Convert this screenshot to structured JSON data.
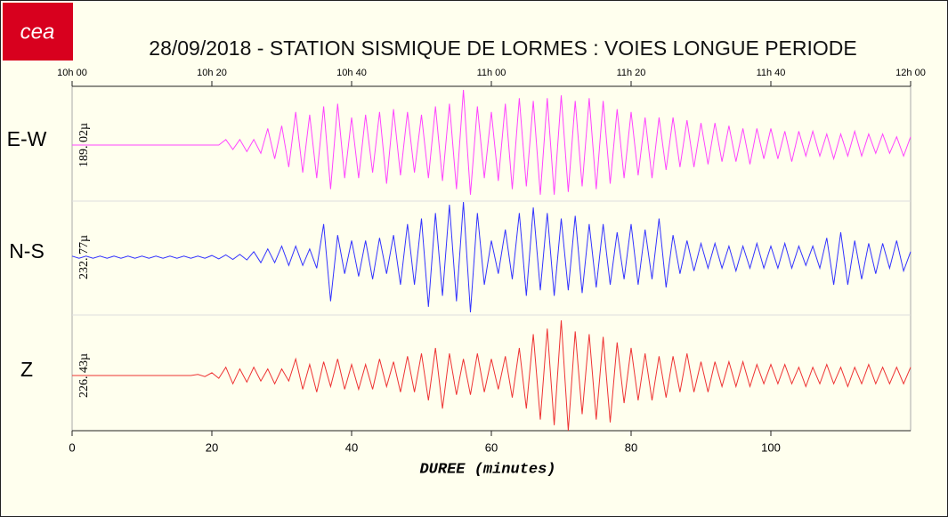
{
  "chart_data": {
    "type": "line",
    "logo": "cea",
    "title": "28/09/2018  -  STATION SISMIQUE DE LORMES : VOIES LONGUE PERIODE",
    "xlabel": "DUREE (minutes)",
    "xlim": [
      0,
      120
    ],
    "xticks": [
      0,
      20,
      40,
      60,
      80,
      100
    ],
    "x2ticks": [
      {
        "value": 0,
        "label": "10h 00"
      },
      {
        "value": 20,
        "label": "10h 20"
      },
      {
        "value": 40,
        "label": "10h 40"
      },
      {
        "value": 60,
        "label": "11h 00"
      },
      {
        "value": 80,
        "label": "11h 20"
      },
      {
        "value": 100,
        "label": "11h 40"
      },
      {
        "value": 120,
        "label": "12h 00"
      }
    ],
    "ylim": [
      -1,
      1
    ],
    "x": [
      0,
      1,
      2,
      3,
      4,
      5,
      6,
      7,
      8,
      9,
      10,
      11,
      12,
      13,
      14,
      15,
      16,
      17,
      18,
      19,
      20,
      21,
      22,
      23,
      24,
      25,
      26,
      27,
      28,
      29,
      30,
      31,
      32,
      33,
      34,
      35,
      36,
      37,
      38,
      39,
      40,
      41,
      42,
      43,
      44,
      45,
      46,
      47,
      48,
      49,
      50,
      51,
      52,
      53,
      54,
      55,
      56,
      57,
      58,
      59,
      60,
      61,
      62,
      63,
      64,
      65,
      66,
      67,
      68,
      69,
      70,
      71,
      72,
      73,
      74,
      75,
      76,
      77,
      78,
      79,
      80,
      81,
      82,
      83,
      84,
      85,
      86,
      87,
      88,
      89,
      90,
      91,
      92,
      93,
      94,
      95,
      96,
      97,
      98,
      99,
      100,
      101,
      102,
      103,
      104,
      105,
      106,
      107,
      108,
      109,
      110,
      111,
      112,
      113,
      114,
      115,
      116,
      117,
      118,
      119,
      120
    ],
    "series": [
      {
        "name": "E-W",
        "scale_label": "189. 02µ",
        "color": "#ff44ff",
        "values": [
          0,
          0,
          0,
          0,
          0,
          0,
          0,
          0,
          0,
          0,
          0,
          0,
          0,
          0,
          0,
          0,
          0,
          0,
          0,
          0,
          0,
          0,
          0.1,
          -0.08,
          0.1,
          -0.12,
          0.1,
          -0.15,
          0.3,
          -0.25,
          0.35,
          -0.4,
          0.6,
          -0.5,
          0.55,
          -0.6,
          0.7,
          -0.8,
          0.75,
          -0.6,
          0.5,
          -0.6,
          0.55,
          -0.5,
          0.6,
          -0.7,
          0.65,
          -0.55,
          0.6,
          -0.5,
          0.55,
          -0.6,
          0.7,
          -0.65,
          0.75,
          -0.8,
          1.0,
          -0.9,
          0.7,
          -0.6,
          0.6,
          -0.65,
          0.75,
          -0.8,
          0.85,
          -0.75,
          0.8,
          -0.9,
          0.85,
          -0.9,
          0.9,
          -0.85,
          0.8,
          -0.75,
          0.85,
          -0.8,
          0.8,
          -0.7,
          0.65,
          -0.6,
          0.6,
          -0.55,
          0.5,
          -0.6,
          0.5,
          -0.45,
          0.5,
          -0.4,
          0.45,
          -0.4,
          0.4,
          -0.35,
          0.4,
          -0.3,
          0.35,
          -0.3,
          0.3,
          -0.35,
          0.3,
          -0.25,
          0.3,
          -0.25,
          0.25,
          -0.3,
          0.25,
          -0.2,
          0.25,
          -0.2,
          0.2,
          -0.25,
          0.2,
          -0.2,
          0.25,
          -0.2,
          0.2,
          -0.15,
          0.2,
          -0.15,
          0.15,
          -0.2,
          0.15
        ]
      },
      {
        "name": "N-S",
        "scale_label": "232. 77µ",
        "color": "#3333ff",
        "values": [
          0.02,
          -0.02,
          0.02,
          -0.02,
          0.02,
          -0.02,
          0.02,
          -0.02,
          0.02,
          -0.02,
          0.02,
          -0.02,
          0.02,
          -0.02,
          0.02,
          -0.02,
          0.02,
          -0.02,
          0.02,
          -0.02,
          0.03,
          -0.03,
          0.04,
          -0.04,
          0.05,
          -0.05,
          0.1,
          -0.1,
          0.15,
          -0.1,
          0.2,
          -0.15,
          0.2,
          -0.15,
          0.15,
          -0.2,
          0.6,
          -0.8,
          0.4,
          -0.3,
          0.3,
          -0.35,
          0.3,
          -0.4,
          0.35,
          -0.3,
          0.4,
          -0.5,
          0.6,
          -0.5,
          0.7,
          -0.9,
          0.8,
          -0.7,
          0.95,
          -0.8,
          1.0,
          -1.0,
          0.8,
          -0.5,
          0.3,
          -0.3,
          0.5,
          -0.4,
          0.8,
          -0.7,
          0.9,
          -0.6,
          0.8,
          -0.7,
          0.7,
          -0.6,
          0.75,
          -0.65,
          0.6,
          -0.55,
          0.6,
          -0.5,
          0.45,
          -0.4,
          0.6,
          -0.5,
          0.5,
          -0.4,
          0.7,
          -0.55,
          0.4,
          -0.3,
          0.3,
          -0.25,
          0.25,
          -0.2,
          0.25,
          -0.2,
          0.2,
          -0.25,
          0.2,
          -0.2,
          0.25,
          -0.2,
          0.2,
          -0.2,
          0.25,
          -0.2,
          0.2,
          -0.15,
          0.2,
          -0.2,
          0.35,
          -0.5,
          0.45,
          -0.5,
          0.3,
          -0.4,
          0.25,
          -0.3,
          0.25,
          -0.2,
          0.3,
          -0.25,
          0.1
        ]
      },
      {
        "name": "Z",
        "scale_label": "226. 43µ",
        "color": "#ee3333",
        "values": [
          0,
          0,
          0,
          0,
          0,
          0,
          0,
          0,
          0,
          0,
          0,
          0,
          0,
          0,
          0,
          0,
          0,
          0,
          0.02,
          -0.02,
          0.05,
          -0.05,
          0.15,
          -0.15,
          0.12,
          -0.12,
          0.15,
          -0.1,
          0.12,
          -0.15,
          0.12,
          -0.1,
          0.3,
          -0.25,
          0.2,
          -0.3,
          0.25,
          -0.2,
          0.3,
          -0.25,
          0.2,
          -0.25,
          0.2,
          -0.25,
          0.3,
          -0.2,
          0.25,
          -0.3,
          0.35,
          -0.3,
          0.4,
          -0.45,
          0.5,
          -0.6,
          0.4,
          -0.35,
          0.3,
          -0.35,
          0.4,
          -0.3,
          0.3,
          -0.25,
          0.35,
          -0.4,
          0.5,
          -0.6,
          0.75,
          -0.8,
          0.85,
          -0.9,
          1.0,
          -1.0,
          0.8,
          -0.7,
          0.75,
          -0.8,
          0.7,
          -0.85,
          0.6,
          -0.5,
          0.5,
          -0.45,
          0.4,
          -0.45,
          0.35,
          -0.4,
          0.35,
          -0.3,
          0.4,
          -0.3,
          0.25,
          -0.3,
          0.25,
          -0.2,
          0.25,
          -0.2,
          0.25,
          -0.2,
          0.2,
          -0.15,
          0.2,
          -0.15,
          0.2,
          -0.15,
          0.15,
          -0.2,
          0.15,
          -0.15,
          0.2,
          -0.15,
          0.15,
          -0.2,
          0.15,
          -0.15,
          0.2,
          -0.15,
          0.15,
          -0.15,
          0.15,
          -0.15,
          0.15
        ]
      }
    ]
  }
}
